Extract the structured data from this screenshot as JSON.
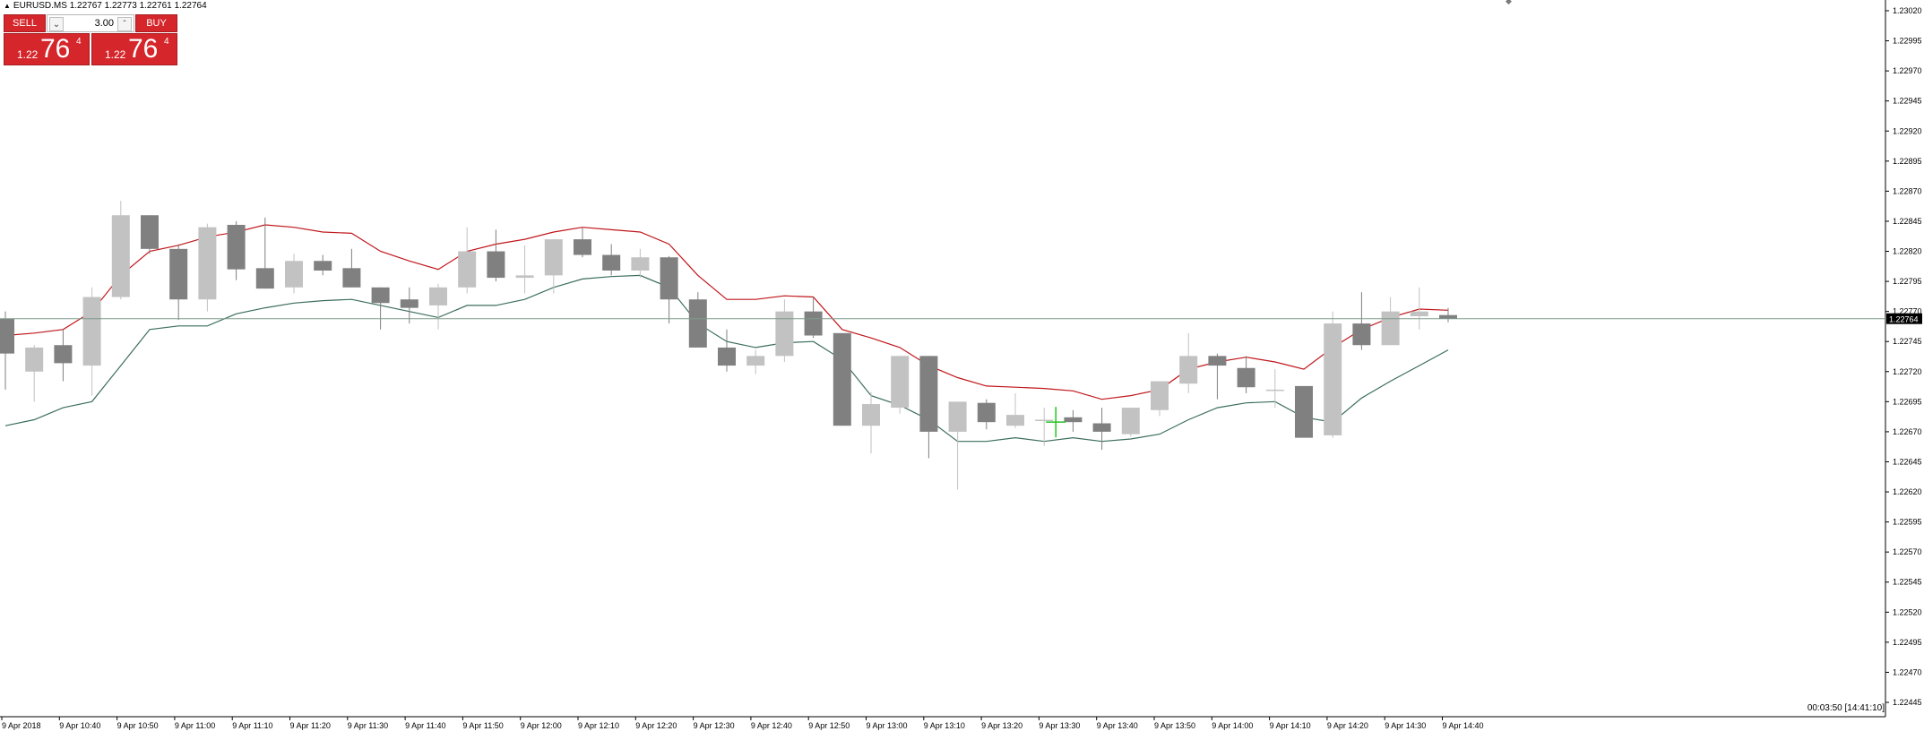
{
  "header": {
    "symbol": "EURUSD.MS",
    "ohlc": "1.22767 1.22773 1.22761 1.22764"
  },
  "trade_panel": {
    "sell_label": "SELL",
    "buy_label": "BUY",
    "lot_value": "3.00",
    "sell_price": {
      "prefix": "1.22",
      "big": "76",
      "sup": "4"
    },
    "buy_price": {
      "prefix": "1.22",
      "big": "76",
      "sup": "4"
    }
  },
  "timer": "00:03:50 [14:41:10]",
  "current_price_label": "1.22764",
  "colors": {
    "bull": "#c2c2c2",
    "bear": "#808080",
    "upper_band": "#c0161b",
    "lower_band": "#3b6e5a",
    "price_line": "#7f9b8a",
    "crosshair": "#22c322",
    "accent": "#d4262b"
  },
  "chart_data": {
    "type": "candlestick",
    "y_ticks": [
      "1.23020",
      "1.22995",
      "1.22970",
      "1.22945",
      "1.22920",
      "1.22895",
      "1.22870",
      "1.22845",
      "1.22820",
      "1.22795",
      "1.22770",
      "1.22745",
      "1.22720",
      "1.22695",
      "1.22670",
      "1.22645",
      "1.22620",
      "1.22595",
      "1.22570",
      "1.22545",
      "1.22520",
      "1.22495",
      "1.22470",
      "1.22445"
    ],
    "x_labels": [
      "9 Apr 2018",
      "9 Apr 10:40",
      "9 Apr 10:50",
      "9 Apr 11:00",
      "9 Apr 11:10",
      "9 Apr 11:20",
      "9 Apr 11:30",
      "9 Apr 11:40",
      "9 Apr 11:50",
      "9 Apr 12:00",
      "9 Apr 12:10",
      "9 Apr 12:20",
      "9 Apr 12:30",
      "9 Apr 12:40",
      "9 Apr 12:50",
      "9 Apr 13:00",
      "9 Apr 13:10",
      "9 Apr 13:20",
      "9 Apr 13:30",
      "9 Apr 13:40",
      "9 Apr 13:50",
      "9 Apr 14:00",
      "9 Apr 14:10",
      "9 Apr 14:20",
      "9 Apr 14:30",
      "9 Apr 14:40"
    ],
    "ylim": [
      1.22445,
      1.23025
    ],
    "current_price": 1.22764,
    "candles": [
      {
        "o": 1.22764,
        "h": 1.2277,
        "l": 1.22705,
        "c": 1.22735
      },
      {
        "o": 1.2272,
        "h": 1.22742,
        "l": 1.22695,
        "c": 1.2274
      },
      {
        "o": 1.22742,
        "h": 1.22755,
        "l": 1.22712,
        "c": 1.22727
      },
      {
        "o": 1.22725,
        "h": 1.2279,
        "l": 1.227,
        "c": 1.22782
      },
      {
        "o": 1.22782,
        "h": 1.22862,
        "l": 1.2278,
        "c": 1.2285
      },
      {
        "o": 1.2285,
        "h": 1.2285,
        "l": 1.22818,
        "c": 1.22822
      },
      {
        "o": 1.22822,
        "h": 1.22826,
        "l": 1.22763,
        "c": 1.2278
      },
      {
        "o": 1.2278,
        "h": 1.22843,
        "l": 1.2277,
        "c": 1.2284
      },
      {
        "o": 1.22842,
        "h": 1.22845,
        "l": 1.22796,
        "c": 1.22805
      },
      {
        "o": 1.22806,
        "h": 1.22848,
        "l": 1.22789,
        "c": 1.22789
      },
      {
        "o": 1.2279,
        "h": 1.22818,
        "l": 1.22785,
        "c": 1.22812
      },
      {
        "o": 1.22812,
        "h": 1.22817,
        "l": 1.228,
        "c": 1.22804
      },
      {
        "o": 1.22806,
        "h": 1.22822,
        "l": 1.2279,
        "c": 1.2279
      },
      {
        "o": 1.2279,
        "h": 1.2279,
        "l": 1.22755,
        "c": 1.22777
      },
      {
        "o": 1.2278,
        "h": 1.2279,
        "l": 1.2276,
        "c": 1.22773
      },
      {
        "o": 1.22775,
        "h": 1.22793,
        "l": 1.22755,
        "c": 1.2279
      },
      {
        "o": 1.2279,
        "h": 1.2284,
        "l": 1.22785,
        "c": 1.2282
      },
      {
        "o": 1.2282,
        "h": 1.22838,
        "l": 1.22795,
        "c": 1.22798
      },
      {
        "o": 1.22798,
        "h": 1.22825,
        "l": 1.22785,
        "c": 1.228
      },
      {
        "o": 1.228,
        "h": 1.2283,
        "l": 1.22785,
        "c": 1.2283
      },
      {
        "o": 1.2283,
        "h": 1.2284,
        "l": 1.22815,
        "c": 1.22817
      },
      {
        "o": 1.22817,
        "h": 1.22826,
        "l": 1.228,
        "c": 1.22804
      },
      {
        "o": 1.22804,
        "h": 1.22822,
        "l": 1.22798,
        "c": 1.22815
      },
      {
        "o": 1.22815,
        "h": 1.22816,
        "l": 1.2276,
        "c": 1.2278
      },
      {
        "o": 1.2278,
        "h": 1.22786,
        "l": 1.2274,
        "c": 1.2274
      },
      {
        "o": 1.2274,
        "h": 1.22755,
        "l": 1.2272,
        "c": 1.22725
      },
      {
        "o": 1.22725,
        "h": 1.22738,
        "l": 1.22718,
        "c": 1.22733
      },
      {
        "o": 1.22733,
        "h": 1.2278,
        "l": 1.22728,
        "c": 1.2277
      },
      {
        "o": 1.2277,
        "h": 1.22782,
        "l": 1.22748,
        "c": 1.2275
      },
      {
        "o": 1.22752,
        "h": 1.22752,
        "l": 1.22675,
        "c": 1.22675
      },
      {
        "o": 1.22675,
        "h": 1.22703,
        "l": 1.22652,
        "c": 1.22693
      },
      {
        "o": 1.2269,
        "h": 1.22733,
        "l": 1.22685,
        "c": 1.22733
      },
      {
        "o": 1.22733,
        "h": 1.22733,
        "l": 1.22648,
        "c": 1.2267
      },
      {
        "o": 1.2267,
        "h": 1.22695,
        "l": 1.22622,
        "c": 1.22695
      },
      {
        "o": 1.22694,
        "h": 1.22697,
        "l": 1.22672,
        "c": 1.22678
      },
      {
        "o": 1.22675,
        "h": 1.22702,
        "l": 1.22673,
        "c": 1.22684
      },
      {
        "o": 1.2268,
        "h": 1.2269,
        "l": 1.22658,
        "c": 1.2268
      },
      {
        "o": 1.22682,
        "h": 1.22688,
        "l": 1.2267,
        "c": 1.22678
      },
      {
        "o": 1.22677,
        "h": 1.2269,
        "l": 1.22655,
        "c": 1.2267
      },
      {
        "o": 1.22668,
        "h": 1.2269,
        "l": 1.22666,
        "c": 1.2269
      },
      {
        "o": 1.22688,
        "h": 1.22712,
        "l": 1.22683,
        "c": 1.22712
      },
      {
        "o": 1.2271,
        "h": 1.22752,
        "l": 1.22702,
        "c": 1.22733
      },
      {
        "o": 1.22733,
        "h": 1.22735,
        "l": 1.22697,
        "c": 1.22725
      },
      {
        "o": 1.22723,
        "h": 1.22733,
        "l": 1.22702,
        "c": 1.22707
      },
      {
        "o": 1.22705,
        "h": 1.22722,
        "l": 1.2269,
        "c": 1.22705
      },
      {
        "o": 1.22708,
        "h": 1.22708,
        "l": 1.22665,
        "c": 1.22665
      },
      {
        "o": 1.22667,
        "h": 1.2277,
        "l": 1.22665,
        "c": 1.2276
      },
      {
        "o": 1.2276,
        "h": 1.22786,
        "l": 1.22738,
        "c": 1.22742
      },
      {
        "o": 1.22742,
        "h": 1.22782,
        "l": 1.22742,
        "c": 1.2277
      },
      {
        "o": 1.22766,
        "h": 1.2279,
        "l": 1.22755,
        "c": 1.2277
      },
      {
        "o": 1.22767,
        "h": 1.22773,
        "l": 1.22761,
        "c": 1.22764
      }
    ],
    "upper_band": [
      1.2275,
      1.22752,
      1.22755,
      1.2277,
      1.228,
      1.2282,
      1.22825,
      1.22832,
      1.22836,
      1.22842,
      1.2284,
      1.22836,
      1.22835,
      1.2282,
      1.22812,
      1.22805,
      1.2282,
      1.22826,
      1.2283,
      1.22836,
      1.2284,
      1.22838,
      1.22836,
      1.22826,
      1.228,
      1.2278,
      1.2278,
      1.22783,
      1.22782,
      1.22755,
      1.22748,
      1.2274,
      1.22725,
      1.22715,
      1.22708,
      1.22707,
      1.22706,
      1.22704,
      1.22697,
      1.227,
      1.22705,
      1.22722,
      1.22728,
      1.22732,
      1.22728,
      1.22722,
      1.2274,
      1.22755,
      1.22765,
      1.22772,
      1.22771
    ],
    "lower_band": [
      1.22675,
      1.2268,
      1.2269,
      1.22695,
      1.22725,
      1.22755,
      1.22758,
      1.22758,
      1.22768,
      1.22773,
      1.22777,
      1.22779,
      1.2278,
      1.22775,
      1.2277,
      1.22765,
      1.22775,
      1.22775,
      1.2278,
      1.2279,
      1.22797,
      1.22799,
      1.228,
      1.2279,
      1.2276,
      1.22745,
      1.2274,
      1.22744,
      1.22745,
      1.2273,
      1.227,
      1.22692,
      1.2268,
      1.22662,
      1.22662,
      1.22665,
      1.22662,
      1.22665,
      1.22662,
      1.22664,
      1.22668,
      1.2268,
      1.2269,
      1.22694,
      1.22695,
      1.22682,
      1.22678,
      1.22698,
      1.22712,
      1.22725,
      1.22738
    ]
  }
}
